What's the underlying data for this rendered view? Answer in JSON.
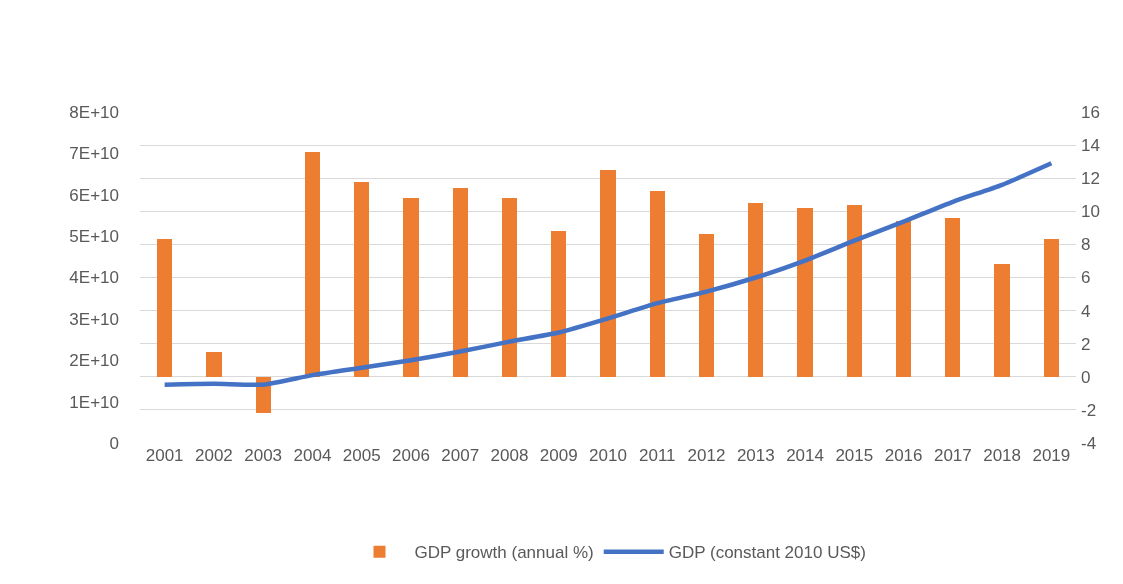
{
  "chart_data": {
    "type": "bar",
    "categories": [
      "2001",
      "2002",
      "2003",
      "2004",
      "2005",
      "2006",
      "2007",
      "2008",
      "2009",
      "2010",
      "2011",
      "2012",
      "2013",
      "2014",
      "2015",
      "2016",
      "2017",
      "2018",
      "2019"
    ],
    "series": [
      {
        "name": "GDP growth (annual %)",
        "color": "#ed7d31",
        "axis": "y2",
        "values": [
          8.3,
          1.5,
          -2.2,
          13.6,
          11.8,
          10.8,
          11.4,
          10.8,
          8.8,
          12.5,
          11.2,
          8.6,
          10.5,
          10.2,
          10.4,
          9.4,
          9.6,
          6.8,
          8.3
        ]
      },
      {
        "name": "GDP (constant 2010 US$)",
        "type": "line",
        "color": "#4472c4",
        "values": [
          14100000000,
          14300000000,
          14100000000,
          16400000000,
          18200000000,
          20000000000,
          22100000000,
          24500000000,
          26700000000,
          30100000000,
          33800000000,
          36600000000,
          40000000000,
          44100000000,
          48900000000,
          53500000000,
          58300000000,
          62400000000,
          67600000000
        ]
      }
    ],
    "ylim": [
      0,
      80000000000
    ],
    "yticks": [
      0,
      {
        "value": 10000000000,
        "label": "1E+10"
      },
      {
        "value": 20000000000,
        "label": "2E+10"
      },
      {
        "value": 30000000000,
        "label": "3E+10"
      },
      {
        "value": 40000000000,
        "label": "4E+10"
      },
      {
        "value": 50000000000,
        "label": "5E+10"
      },
      {
        "value": 60000000000,
        "label": "6E+10"
      },
      {
        "value": 70000000000,
        "label": "7E+10"
      },
      {
        "value": 80000000000,
        "label": "8E+10"
      }
    ],
    "y2lim": [
      -4,
      16
    ],
    "y2ticks": [
      -4,
      -2,
      0,
      2,
      4,
      6,
      8,
      10,
      12,
      14,
      16
    ],
    "grid": "y",
    "legend": "bottom"
  }
}
